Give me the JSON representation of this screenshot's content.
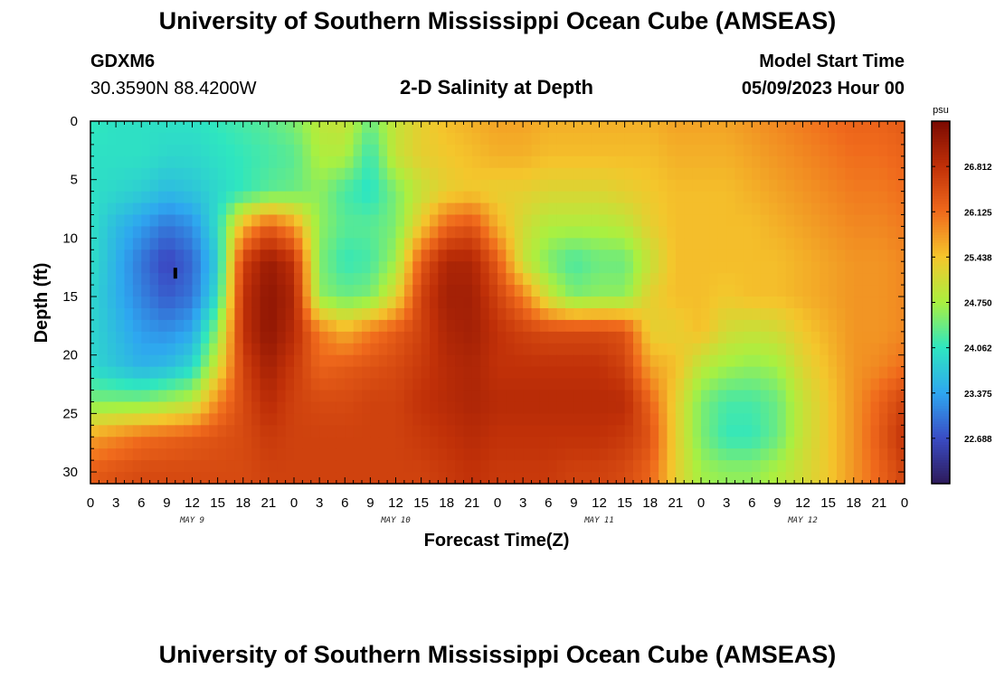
{
  "header": {
    "title": "University of Southern Mississippi Ocean Cube (AMSEAS)",
    "station": "GDXM6",
    "coords": "30.3590N  88.4200W",
    "subtitle": "2-D Salinity at Depth",
    "model_start_label": "Model Start Time",
    "model_start_value": "05/09/2023 Hour 00"
  },
  "footer": {
    "title": "University of Southern Mississippi Ocean Cube (AMSEAS)"
  },
  "chart_data": {
    "type": "heatmap",
    "title": "2-D Salinity at Depth",
    "xlabel": "Forecast Time(Z)",
    "ylabel": "Depth (ft)",
    "x_tick_labels": [
      "0",
      "3",
      "6",
      "9",
      "12",
      "15",
      "18",
      "21",
      "0",
      "3",
      "6",
      "9",
      "12",
      "15",
      "18",
      "21",
      "0",
      "3",
      "6",
      "9",
      "12",
      "15",
      "18",
      "21",
      "0",
      "3",
      "6",
      "9",
      "12",
      "15",
      "18",
      "21",
      "0"
    ],
    "day_labels": [
      "MAY 9",
      "MAY 10",
      "MAY 11",
      "MAY 12"
    ],
    "xlim_hours": [
      0,
      96
    ],
    "ylim_ft": [
      0,
      31
    ],
    "y_ticks": [
      0,
      5,
      10,
      15,
      20,
      25,
      30
    ],
    "colorbar": {
      "unit": "psu",
      "range": [
        22.0,
        27.5
      ],
      "tick_values": [
        26.812,
        26.125,
        25.438,
        24.75,
        24.062,
        23.375,
        22.688
      ],
      "tick_labels": [
        "26.812",
        "26.125",
        "25.438",
        "24.750",
        "24.062",
        "23.375",
        "22.688"
      ],
      "colors": [
        "#2d1a5a",
        "#3a4cc4",
        "#2ea6f0",
        "#2ee6c0",
        "#aaf040",
        "#f4c62c",
        "#f06a1c",
        "#c03008",
        "#7a0a02"
      ]
    },
    "depths_ft": [
      0,
      3,
      6,
      9,
      12,
      15,
      18,
      21,
      24,
      27,
      30
    ],
    "times_h": [
      0,
      3,
      6,
      9,
      12,
      15,
      18,
      21,
      24,
      27,
      30,
      33,
      36,
      39,
      42,
      45,
      48,
      51,
      54,
      57,
      60,
      63,
      66,
      69,
      72,
      75,
      78,
      81,
      84,
      87,
      90,
      93,
      96
    ],
    "salinity": [
      [
        24.1,
        24.0,
        24.0,
        24.0,
        24.0,
        24.1,
        24.2,
        24.3,
        24.5,
        24.9,
        25.0,
        24.4,
        25.0,
        25.3,
        25.5,
        25.6,
        25.7,
        25.7,
        25.6,
        25.6,
        25.6,
        25.6,
        25.6,
        25.7,
        25.7,
        25.7,
        25.8,
        25.9,
        26.0,
        26.1,
        26.2,
        26.2,
        26.3
      ],
      [
        24.0,
        24.0,
        24.0,
        23.9,
        23.9,
        24.0,
        24.1,
        24.2,
        24.3,
        24.8,
        24.8,
        24.1,
        25.0,
        25.3,
        25.4,
        25.5,
        25.6,
        25.6,
        25.5,
        25.5,
        25.5,
        25.5,
        25.5,
        25.6,
        25.6,
        25.6,
        25.7,
        25.8,
        25.9,
        26.0,
        26.1,
        26.1,
        26.2
      ],
      [
        24.0,
        23.9,
        23.8,
        23.6,
        23.7,
        23.9,
        24.1,
        24.3,
        24.4,
        24.6,
        24.2,
        24.0,
        24.5,
        25.0,
        25.3,
        25.4,
        25.3,
        25.3,
        25.2,
        25.2,
        25.2,
        25.3,
        25.4,
        25.5,
        25.5,
        25.5,
        25.6,
        25.7,
        25.8,
        25.9,
        26.0,
        26.0,
        26.1
      ],
      [
        24.0,
        23.6,
        23.3,
        23.0,
        23.2,
        24.0,
        25.6,
        26.3,
        25.8,
        24.6,
        24.3,
        24.3,
        24.5,
        25.4,
        26.2,
        26.4,
        25.6,
        25.1,
        24.8,
        24.8,
        24.8,
        24.9,
        25.3,
        25.5,
        25.5,
        25.5,
        25.5,
        25.6,
        25.7,
        25.8,
        25.9,
        25.9,
        26.0
      ],
      [
        24.0,
        23.5,
        23.0,
        22.6,
        22.9,
        23.8,
        26.6,
        27.2,
        26.8,
        24.5,
        24.1,
        24.2,
        24.7,
        26.3,
        27.0,
        27.0,
        26.3,
        25.0,
        24.5,
        24.2,
        24.4,
        24.4,
        25.0,
        25.5,
        25.5,
        25.5,
        25.5,
        25.5,
        25.6,
        25.7,
        25.8,
        25.8,
        25.9
      ],
      [
        23.9,
        23.5,
        23.1,
        22.8,
        23.0,
        24.0,
        26.8,
        27.3,
        27.0,
        24.6,
        24.4,
        24.5,
        25.2,
        26.6,
        27.1,
        27.1,
        26.6,
        26.0,
        25.0,
        24.5,
        24.6,
        24.6,
        25.3,
        25.5,
        25.5,
        25.4,
        25.5,
        25.5,
        25.6,
        25.7,
        25.8,
        25.8,
        25.9
      ],
      [
        23.9,
        23.6,
        23.3,
        23.2,
        23.4,
        24.6,
        26.8,
        27.3,
        26.9,
        26.0,
        25.6,
        26.0,
        26.3,
        26.6,
        27.0,
        27.1,
        26.8,
        26.6,
        26.5,
        26.5,
        26.5,
        26.4,
        25.3,
        25.3,
        25.5,
        25.1,
        25.0,
        25.1,
        25.4,
        25.6,
        25.8,
        25.8,
        25.9
      ],
      [
        23.9,
        23.7,
        23.5,
        23.6,
        23.9,
        25.1,
        26.6,
        27.1,
        26.7,
        26.2,
        26.3,
        26.4,
        26.5,
        26.7,
        26.9,
        27.0,
        26.8,
        26.8,
        26.8,
        26.8,
        26.8,
        26.6,
        25.7,
        25.5,
        24.9,
        24.7,
        24.6,
        24.7,
        25.2,
        25.5,
        25.8,
        25.9,
        26.1
      ],
      [
        24.5,
        24.5,
        24.5,
        24.7,
        24.9,
        25.9,
        26.5,
        26.9,
        26.6,
        26.5,
        26.5,
        26.6,
        26.6,
        26.8,
        26.9,
        27.0,
        26.9,
        26.9,
        26.9,
        26.9,
        26.9,
        26.9,
        26.2,
        25.3,
        24.5,
        24.2,
        24.2,
        24.4,
        25.0,
        25.4,
        25.8,
        26.2,
        26.6
      ],
      [
        25.7,
        25.9,
        26.1,
        26.2,
        26.3,
        26.4,
        26.5,
        26.7,
        26.6,
        26.6,
        26.6,
        26.6,
        26.6,
        26.7,
        26.8,
        26.9,
        26.8,
        26.8,
        26.8,
        26.8,
        26.8,
        26.7,
        26.4,
        25.3,
        24.5,
        24.1,
        24.1,
        24.4,
        25.0,
        25.4,
        25.8,
        26.3,
        26.8
      ],
      [
        26.3,
        26.4,
        26.5,
        26.5,
        26.5,
        26.5,
        26.5,
        26.6,
        26.6,
        26.6,
        26.6,
        26.6,
        26.6,
        26.6,
        26.7,
        26.8,
        26.7,
        26.7,
        26.7,
        26.6,
        26.6,
        26.5,
        26.2,
        25.3,
        24.7,
        24.6,
        24.6,
        24.8,
        25.1,
        25.4,
        25.8,
        26.2,
        26.6
      ]
    ],
    "marker": {
      "hour": 10,
      "depth_ft": 13
    }
  }
}
